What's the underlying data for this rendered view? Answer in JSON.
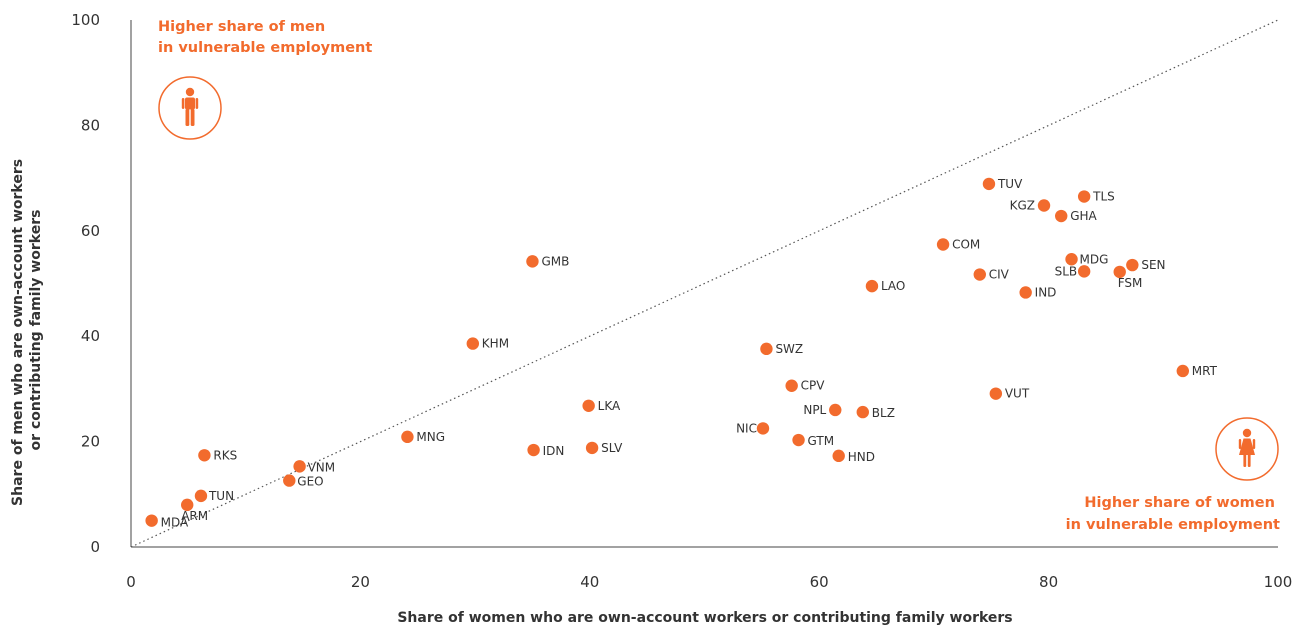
{
  "chart_data": {
    "type": "scatter",
    "xlabel": "Share of women who are own-account workers or contributing family workers",
    "ylabel_lines": [
      "Share of men who are own-account workers",
      "or contributing family workers"
    ],
    "xlim": [
      0,
      100
    ],
    "ylim": [
      0,
      100
    ],
    "x_ticks": [
      0,
      20,
      40,
      60,
      80,
      100
    ],
    "y_ticks": [
      0,
      20,
      40,
      60,
      80,
      100
    ],
    "reference_line": "y = x (dotted)",
    "grid": false,
    "marker_color": "#F26B2D",
    "annotation_color": "#F26B2D",
    "annotations": {
      "top_left": [
        "Higher share of men",
        "in vulnerable employment"
      ],
      "bottom_right": [
        "Higher share of women",
        "in vulnerable employment"
      ]
    },
    "icons": {
      "top_left": "man-icon",
      "bottom_right": "woman-icon"
    },
    "points": [
      {
        "label": "MDA",
        "x": 1.8,
        "y": 5.0
      },
      {
        "label": "ARM",
        "x": 4.9,
        "y": 8.0
      },
      {
        "label": "TUN",
        "x": 6.1,
        "y": 9.7
      },
      {
        "label": "RKS",
        "x": 6.4,
        "y": 17.4
      },
      {
        "label": "GEO",
        "x": 13.8,
        "y": 12.6
      },
      {
        "label": "VNM",
        "x": 14.7,
        "y": 15.3
      },
      {
        "label": "MNG",
        "x": 24.1,
        "y": 20.9
      },
      {
        "label": "KHM",
        "x": 29.8,
        "y": 38.6
      },
      {
        "label": "GMB",
        "x": 35.0,
        "y": 54.2
      },
      {
        "label": "IDN",
        "x": 35.1,
        "y": 18.4
      },
      {
        "label": "LKA",
        "x": 39.9,
        "y": 26.8
      },
      {
        "label": "SLV",
        "x": 40.2,
        "y": 18.8
      },
      {
        "label": "NIC",
        "x": 55.1,
        "y": 22.5
      },
      {
        "label": "SWZ",
        "x": 55.4,
        "y": 37.6
      },
      {
        "label": "CPV",
        "x": 57.6,
        "y": 30.6
      },
      {
        "label": "GTM",
        "x": 58.2,
        "y": 20.3
      },
      {
        "label": "NPL",
        "x": 61.4,
        "y": 26.0
      },
      {
        "label": "HND",
        "x": 61.7,
        "y": 17.3
      },
      {
        "label": "BLZ",
        "x": 63.8,
        "y": 25.6
      },
      {
        "label": "LAO",
        "x": 64.6,
        "y": 49.5
      },
      {
        "label": "COM",
        "x": 70.8,
        "y": 57.4
      },
      {
        "label": "CIV",
        "x": 74.0,
        "y": 51.7
      },
      {
        "label": "TUV",
        "x": 74.8,
        "y": 68.9
      },
      {
        "label": "VUT",
        "x": 75.4,
        "y": 29.1
      },
      {
        "label": "IND",
        "x": 78.0,
        "y": 48.3
      },
      {
        "label": "KGZ",
        "x": 79.6,
        "y": 64.8
      },
      {
        "label": "GHA",
        "x": 81.1,
        "y": 62.8
      },
      {
        "label": "MDG",
        "x": 82.0,
        "y": 54.6
      },
      {
        "label": "TLS",
        "x": 83.1,
        "y": 66.5
      },
      {
        "label": "SLB",
        "x": 83.1,
        "y": 52.3
      },
      {
        "label": "FSM",
        "x": 86.2,
        "y": 52.2
      },
      {
        "label": "SEN",
        "x": 87.3,
        "y": 53.5
      },
      {
        "label": "MRT",
        "x": 91.7,
        "y": 33.4
      }
    ]
  }
}
